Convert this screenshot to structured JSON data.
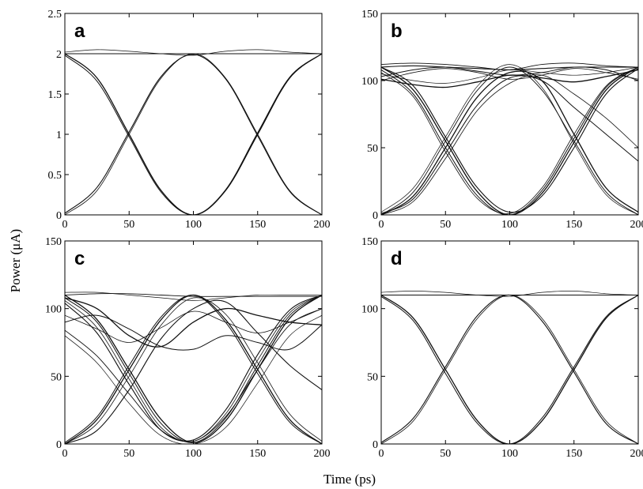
{
  "figure": {
    "ylabel": "Power (μA)",
    "xlabel": "Time (ps)"
  },
  "chart_data": [
    {
      "type": "line",
      "panel": "a",
      "title": "a",
      "grid": false,
      "xlim": [
        0,
        200
      ],
      "ylim": [
        0,
        2.5
      ],
      "xticks": [
        0,
        50,
        100,
        150,
        200
      ],
      "yticks": [
        0,
        0.5,
        1,
        1.5,
        2,
        2.5
      ],
      "xtick_labels": [
        "0",
        "50",
        "100",
        "150",
        "200"
      ],
      "ytick_labels": [
        "0",
        "0.5",
        "1",
        "1.5",
        "2",
        "2.5"
      ],
      "x": [
        0,
        25,
        50,
        75,
        100,
        125,
        150,
        175,
        200
      ],
      "series": [
        {
          "values": [
            2.0,
            1.7,
            1.0,
            0.3,
            0.0,
            0.3,
            1.0,
            1.7,
            2.0
          ]
        },
        {
          "values": [
            1.98,
            1.66,
            0.97,
            0.28,
            0.0,
            0.31,
            1.02,
            1.71,
            2.0
          ]
        },
        {
          "values": [
            0.0,
            0.3,
            1.0,
            1.7,
            2.0,
            1.7,
            1.0,
            0.3,
            0.0
          ]
        },
        {
          "values": [
            0.02,
            0.34,
            1.03,
            1.72,
            1.99,
            1.69,
            0.98,
            0.29,
            0.0
          ]
        },
        {
          "values": [
            2.0,
            2.0,
            2.0,
            2.0,
            2.0,
            2.0,
            2.0,
            2.0,
            2.0
          ]
        },
        {
          "values": [
            2.02,
            2.05,
            2.03,
            2.0,
            1.98,
            2.03,
            2.05,
            2.02,
            2.0
          ]
        }
      ]
    },
    {
      "type": "line",
      "panel": "b",
      "title": "b",
      "grid": false,
      "xlim": [
        0,
        200
      ],
      "ylim": [
        0,
        150
      ],
      "xticks": [
        0,
        50,
        100,
        150,
        200
      ],
      "yticks": [
        0,
        50,
        100,
        150
      ],
      "xtick_labels": [
        "0",
        "50",
        "100",
        "150",
        "200"
      ],
      "ytick_labels": [
        "0",
        "50",
        "100",
        "150"
      ],
      "x": [
        0,
        25,
        50,
        75,
        100,
        125,
        150,
        175,
        200
      ],
      "series": [
        {
          "values": [
            110,
            93,
            55,
            17,
            0,
            16,
            54,
            93,
            110
          ]
        },
        {
          "values": [
            108,
            90,
            50,
            14,
            0,
            18,
            57,
            95,
            110
          ]
        },
        {
          "values": [
            106,
            88,
            47,
            12,
            1,
            20,
            60,
            96,
            110
          ]
        },
        {
          "values": [
            110,
            96,
            58,
            20,
            2,
            14,
            50,
            90,
            109
          ]
        },
        {
          "values": [
            0,
            17,
            55,
            93,
            110,
            93,
            55,
            17,
            0
          ]
        },
        {
          "values": [
            2,
            20,
            58,
            96,
            112,
            95,
            53,
            15,
            0
          ]
        },
        {
          "values": [
            0,
            14,
            50,
            88,
            106,
            100,
            60,
            20,
            2
          ]
        },
        {
          "values": [
            1,
            12,
            46,
            82,
            102,
            100,
            80,
            60,
            40
          ]
        },
        {
          "values": [
            0,
            10,
            42,
            78,
            98,
            104,
            90,
            72,
            50
          ]
        },
        {
          "values": [
            110,
            111,
            110,
            109,
            108,
            109,
            110,
            110,
            110
          ]
        },
        {
          "values": [
            112,
            113,
            112,
            110,
            108,
            112,
            113,
            111,
            110
          ]
        },
        {
          "values": [
            105,
            100,
            98,
            102,
            108,
            106,
            104,
            106,
            110
          ]
        },
        {
          "values": [
            101,
            97,
            95,
            99,
            104,
            102,
            99,
            103,
            108
          ]
        },
        {
          "values": [
            103,
            108,
            110,
            107,
            104,
            106,
            110,
            108,
            100
          ]
        },
        {
          "values": [
            100,
            106,
            109,
            106,
            101,
            104,
            109,
            106,
            101
          ]
        }
      ]
    },
    {
      "type": "line",
      "panel": "c",
      "title": "c",
      "grid": false,
      "xlim": [
        0,
        200
      ],
      "ylim": [
        0,
        150
      ],
      "xticks": [
        0,
        50,
        100,
        150,
        200
      ],
      "yticks": [
        0,
        50,
        100,
        150
      ],
      "xtick_labels": [
        "0",
        "50",
        "100",
        "150",
        "200"
      ],
      "ytick_labels": [
        "0",
        "50",
        "100",
        "150"
      ],
      "x": [
        0,
        25,
        50,
        75,
        100,
        125,
        150,
        175,
        200
      ],
      "series": [
        {
          "values": [
            110,
            92,
            55,
            18,
            1,
            17,
            55,
            93,
            110
          ]
        },
        {
          "values": [
            108,
            90,
            52,
            15,
            1,
            19,
            58,
            95,
            110
          ]
        },
        {
          "values": [
            106,
            86,
            48,
            12,
            2,
            22,
            62,
            97,
            110
          ]
        },
        {
          "values": [
            104,
            82,
            44,
            10,
            3,
            25,
            66,
            99,
            110
          ]
        },
        {
          "values": [
            84,
            65,
            37,
            10,
            2,
            20,
            55,
            88,
            100
          ]
        },
        {
          "values": [
            80,
            60,
            30,
            6,
            0,
            12,
            45,
            80,
            95
          ]
        },
        {
          "values": [
            0,
            18,
            55,
            92,
            110,
            92,
            55,
            18,
            0
          ]
        },
        {
          "values": [
            1,
            20,
            58,
            94,
            110,
            90,
            52,
            16,
            0
          ]
        },
        {
          "values": [
            0,
            15,
            50,
            88,
            108,
            96,
            60,
            22,
            2
          ]
        },
        {
          "values": [
            0,
            10,
            40,
            78,
            100,
            105,
            82,
            58,
            40
          ]
        },
        {
          "values": [
            110,
            111,
            111,
            110,
            109,
            109,
            109,
            109,
            109
          ]
        },
        {
          "values": [
            112,
            112,
            110,
            108,
            106,
            108,
            110,
            110,
            110
          ]
        },
        {
          "values": [
            108,
            100,
            80,
            72,
            90,
            100,
            95,
            90,
            88
          ]
        },
        {
          "values": [
            90,
            95,
            85,
            72,
            70,
            80,
            75,
            70,
            88
          ]
        },
        {
          "values": [
            95,
            85,
            75,
            86,
            98,
            90,
            82,
            90,
            100
          ]
        }
      ]
    },
    {
      "type": "line",
      "panel": "d",
      "title": "d",
      "grid": false,
      "xlim": [
        0,
        200
      ],
      "ylim": [
        0,
        150
      ],
      "xticks": [
        0,
        50,
        100,
        150,
        200
      ],
      "yticks": [
        0,
        50,
        100,
        150
      ],
      "xtick_labels": [
        "0",
        "50",
        "100",
        "150",
        "200"
      ],
      "ytick_labels": [
        "0",
        "50",
        "100",
        "150"
      ],
      "x": [
        0,
        25,
        50,
        75,
        100,
        125,
        150,
        175,
        200
      ],
      "series": [
        {
          "values": [
            110,
            93,
            55,
            17,
            0,
            17,
            55,
            93,
            110
          ]
        },
        {
          "values": [
            109,
            91,
            52,
            15,
            0,
            19,
            57,
            94,
            110
          ]
        },
        {
          "values": [
            0,
            17,
            55,
            93,
            110,
            93,
            55,
            17,
            0
          ]
        },
        {
          "values": [
            1,
            19,
            57,
            95,
            110,
            91,
            53,
            15,
            0
          ]
        },
        {
          "values": [
            110,
            110,
            110,
            110,
            110,
            110,
            110,
            110,
            110
          ]
        },
        {
          "values": [
            112,
            113,
            112,
            110,
            109,
            112,
            113,
            111,
            110
          ]
        }
      ]
    }
  ]
}
